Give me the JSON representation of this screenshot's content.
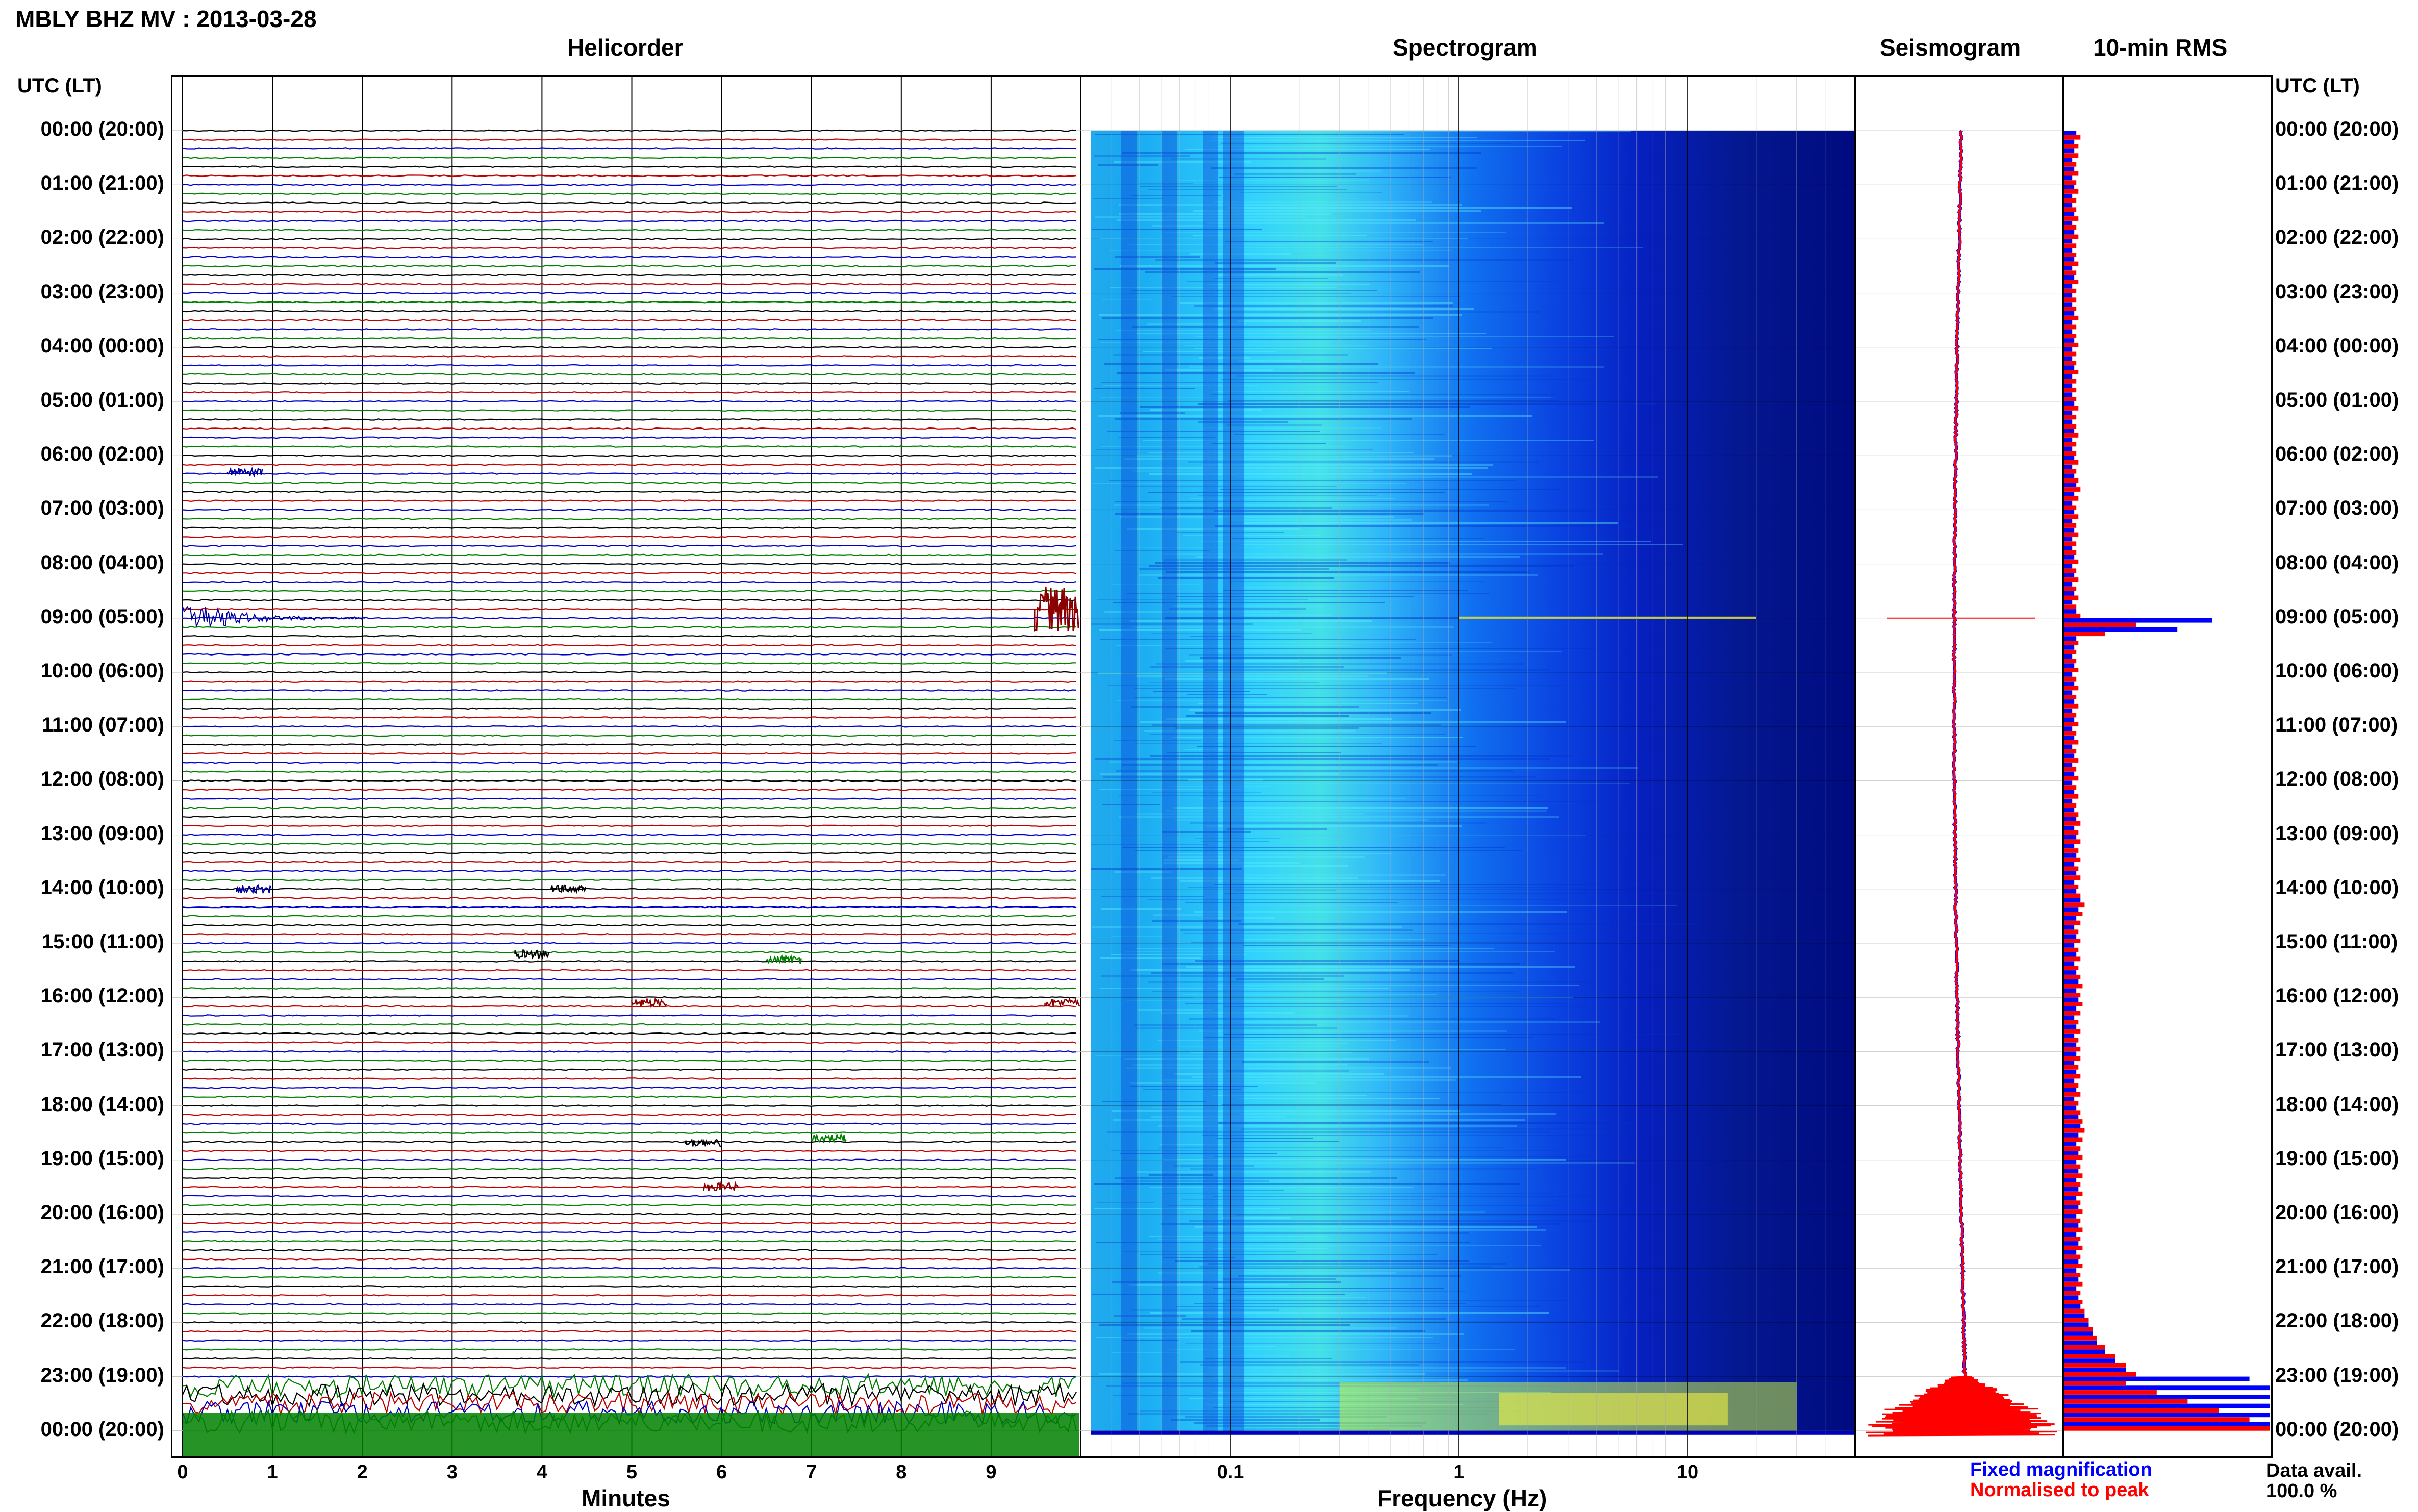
{
  "title": "MBLY BHZ MV : 2013-03-28",
  "panels": {
    "helicorder": "Helicorder",
    "spectrogram": "Spectrogram",
    "seismogram": "Seismogram",
    "rms": "10-min RMS"
  },
  "time_axis_title": "UTC (LT)",
  "row_labels": [
    "00:00 (20:00)",
    "01:00 (21:00)",
    "02:00 (22:00)",
    "03:00 (23:00)",
    "04:00 (00:00)",
    "05:00 (01:00)",
    "06:00 (02:00)",
    "07:00 (03:00)",
    "08:00 (04:00)",
    "09:00 (05:00)",
    "10:00 (06:00)",
    "11:00 (07:00)",
    "12:00 (08:00)",
    "13:00 (09:00)",
    "14:00 (10:00)",
    "15:00 (11:00)",
    "16:00 (12:00)",
    "17:00 (13:00)",
    "18:00 (14:00)",
    "19:00 (15:00)",
    "20:00 (16:00)",
    "21:00 (17:00)",
    "22:00 (18:00)",
    "23:00 (19:00)",
    "00:00 (20:00)"
  ],
  "helicorder_axis": {
    "label": "Minutes",
    "ticks": [
      "0",
      "1",
      "2",
      "3",
      "4",
      "5",
      "6",
      "7",
      "8",
      "9"
    ]
  },
  "spectrogram_axis": {
    "label": "Frequency (Hz)",
    "ticks": [
      "0.1",
      "1",
      "10"
    ]
  },
  "legend": {
    "fixed": "Fixed magnification",
    "normalised": "Normalised to peak",
    "fixed_color": "#0000ff",
    "normalised_color": "#ff0000"
  },
  "data_avail": {
    "label": "Data avail.",
    "value": "100.0 %"
  },
  "colors": {
    "trace_black": "#000000",
    "trace_red": "#c00000",
    "trace_blue": "#0000c8",
    "trace_green": "#008000",
    "spec_low": "#000080",
    "spec_mid": "#00c8ff",
    "spec_high": "#ffff00"
  },
  "chart_data": [
    {
      "type": "heatmap",
      "title": "Helicorder",
      "xlabel": "Minutes",
      "x_ticks": [
        0,
        1,
        2,
        3,
        4,
        5,
        6,
        7,
        8,
        9
      ],
      "xlim": [
        0,
        10
      ],
      "ylim_hours": [
        0,
        24
      ],
      "lines_per_hour": 6,
      "trace_colors_cycle": [
        "black",
        "red",
        "blue",
        "green"
      ],
      "events": [
        {
          "hour": 9.0,
          "minute": 0.3,
          "amplitude": "large"
        },
        {
          "hour": 8.85,
          "minute": 9.5,
          "amplitude": "large"
        },
        {
          "hour": 23.3,
          "minute": 0.0,
          "amplitude": "continuous high"
        }
      ]
    },
    {
      "type": "heatmap",
      "title": "Spectrogram",
      "xlabel": "Frequency (Hz)",
      "x_scale": "log",
      "xlim": [
        0.025,
        50
      ],
      "x_ticks": [
        0.1,
        1,
        10
      ]
    },
    {
      "type": "line",
      "title": "Seismogram",
      "notes": "Daily amplitude trace, spike near 09:00 and strong increase after 23:00"
    },
    {
      "type": "bar",
      "title": "10-min RMS",
      "series": [
        {
          "name": "Fixed magnification",
          "values": [
            0.06,
            0.05,
            0.05,
            0.04,
            0.05,
            0.04,
            0.05,
            0.04,
            0.04,
            0.05,
            0.04,
            0.05,
            0.04,
            0.04,
            0.05,
            0.04,
            0.05,
            0.04,
            0.04,
            0.04,
            0.05,
            0.04,
            0.04,
            0.05,
            0.04,
            0.04,
            0.05,
            0.04,
            0.04,
            0.04,
            0.05,
            0.04,
            0.04,
            0.05,
            0.04,
            0.04,
            0.05,
            0.04,
            0.05,
            0.06,
            0.05,
            0.04,
            0.05,
            0.04,
            0.05,
            0.04,
            0.04,
            0.05,
            0.04,
            0.05,
            0.04,
            0.05,
            0.04,
            0.06,
            0.72,
            0.55,
            0.06,
            0.05,
            0.04,
            0.05,
            0.04,
            0.05,
            0.04,
            0.05,
            0.04,
            0.05,
            0.04,
            0.05,
            0.04,
            0.05,
            0.04,
            0.05,
            0.04,
            0.05,
            0.04,
            0.05,
            0.06,
            0.05,
            0.06,
            0.05,
            0.06,
            0.05,
            0.06,
            0.05,
            0.06,
            0.08,
            0.07,
            0.06,
            0.05,
            0.06,
            0.05,
            0.06,
            0.05,
            0.06,
            0.07,
            0.06,
            0.07,
            0.06,
            0.05,
            0.06,
            0.05,
            0.06,
            0.06,
            0.05,
            0.06,
            0.05,
            0.06,
            0.05,
            0.06,
            0.07,
            0.08,
            0.07,
            0.06,
            0.07,
            0.06,
            0.07,
            0.06,
            0.07,
            0.06,
            0.07,
            0.06,
            0.07,
            0.06,
            0.07,
            0.06,
            0.07,
            0.06,
            0.07,
            0.06,
            0.07,
            0.08,
            0.1,
            0.12,
            0.14,
            0.16,
            0.2,
            0.25,
            0.3,
            0.9,
            1.0,
            1.0,
            1.0,
            1.0,
            1.0
          ]
        },
        {
          "name": "Normalised to peak",
          "values": [
            0.08,
            0.07,
            0.07,
            0.06,
            0.07,
            0.06,
            0.07,
            0.06,
            0.06,
            0.07,
            0.06,
            0.07,
            0.06,
            0.06,
            0.07,
            0.06,
            0.07,
            0.06,
            0.06,
            0.06,
            0.07,
            0.06,
            0.06,
            0.07,
            0.06,
            0.06,
            0.07,
            0.06,
            0.06,
            0.06,
            0.07,
            0.06,
            0.06,
            0.07,
            0.06,
            0.06,
            0.07,
            0.06,
            0.07,
            0.08,
            0.07,
            0.06,
            0.07,
            0.06,
            0.07,
            0.06,
            0.06,
            0.07,
            0.06,
            0.07,
            0.06,
            0.07,
            0.06,
            0.08,
            0.35,
            0.2,
            0.07,
            0.06,
            0.06,
            0.07,
            0.06,
            0.07,
            0.06,
            0.07,
            0.06,
            0.07,
            0.06,
            0.07,
            0.06,
            0.07,
            0.06,
            0.07,
            0.06,
            0.07,
            0.06,
            0.07,
            0.08,
            0.07,
            0.08,
            0.07,
            0.08,
            0.07,
            0.08,
            0.07,
            0.08,
            0.1,
            0.09,
            0.08,
            0.07,
            0.08,
            0.07,
            0.08,
            0.07,
            0.08,
            0.09,
            0.08,
            0.09,
            0.08,
            0.07,
            0.08,
            0.07,
            0.08,
            0.08,
            0.07,
            0.08,
            0.07,
            0.08,
            0.07,
            0.08,
            0.09,
            0.1,
            0.09,
            0.08,
            0.09,
            0.08,
            0.09,
            0.08,
            0.09,
            0.08,
            0.09,
            0.08,
            0.09,
            0.08,
            0.09,
            0.08,
            0.09,
            0.08,
            0.09,
            0.08,
            0.09,
            0.1,
            0.12,
            0.14,
            0.16,
            0.2,
            0.25,
            0.3,
            0.35,
            0.3,
            0.45,
            0.6,
            0.75,
            0.9,
            1.0
          ]
        }
      ]
    }
  ]
}
